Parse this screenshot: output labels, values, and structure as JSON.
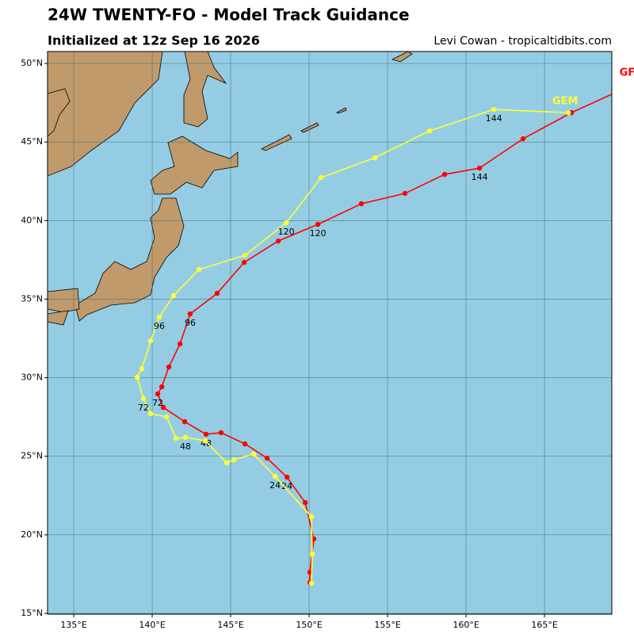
{
  "chart_data": {
    "type": "line",
    "title": "24W TWENTY-FO - Model Track Guidance",
    "subtitle": "Initialized at 12z Sep 16 2026",
    "credit": "Levi Cowan - tropicaltidbits.com",
    "xlim": [
      133.33,
      169.29
    ],
    "ylim": [
      14.95,
      50.76
    ],
    "xticks": [
      {
        "value": 135,
        "label": "135°E"
      },
      {
        "value": 140,
        "label": "140°E"
      },
      {
        "value": 145,
        "label": "145°E"
      },
      {
        "value": 150,
        "label": "150°E"
      },
      {
        "value": 155,
        "label": "155°E"
      },
      {
        "value": 160,
        "label": "160°E"
      },
      {
        "value": 165,
        "label": "165°E"
      }
    ],
    "yticks": [
      {
        "value": 15,
        "label": "15°N"
      },
      {
        "value": 20,
        "label": "20°N"
      },
      {
        "value": 25,
        "label": "25°N"
      },
      {
        "value": 30,
        "label": "30°N"
      },
      {
        "value": 35,
        "label": "35°N"
      },
      {
        "value": 40,
        "label": "40°N"
      },
      {
        "value": 45,
        "label": "45°N"
      },
      {
        "value": 50,
        "label": "50°N"
      }
    ],
    "grid": true,
    "series": [
      {
        "name": "GFS",
        "color": "#ff0000",
        "x": [
          150.05,
          150.05,
          150.3,
          149.75,
          148.59,
          147.32,
          145.91,
          144.39,
          143.43,
          142.07,
          140.71,
          140.35,
          140.61,
          141.06,
          141.77,
          142.42,
          144.14,
          145.86,
          148.03,
          150.56,
          153.33,
          156.11,
          158.64,
          160.86,
          163.64,
          166.72,
          170.71
        ],
        "values": [
          16.97,
          17.62,
          19.74,
          22.06,
          23.67,
          24.88,
          25.79,
          26.5,
          26.4,
          27.2,
          28.11,
          28.97,
          29.42,
          30.68,
          32.15,
          34.06,
          35.37,
          37.34,
          38.7,
          39.76,
          41.07,
          41.73,
          42.94,
          43.34,
          45.21,
          46.87,
          48.69
        ],
        "hour_labels": [
          null,
          null,
          null,
          null,
          "24",
          null,
          null,
          null,
          "48",
          null,
          null,
          "72",
          null,
          null,
          null,
          "96",
          null,
          null,
          null,
          "120",
          null,
          null,
          null,
          "144",
          null,
          null,
          null
        ]
      },
      {
        "name": "GEM",
        "color": "#ffff33",
        "x": [
          150.15,
          150.2,
          150.15,
          147.83,
          146.46,
          145.2,
          144.75,
          143.38,
          142.12,
          141.52,
          140.91,
          139.9,
          139.44,
          139.04,
          139.34,
          139.9,
          140.45,
          141.36,
          142.98,
          145.91,
          148.54,
          150.76,
          154.19,
          157.68,
          161.77,
          166.52
        ],
        "values": [
          16.92,
          18.78,
          21.15,
          23.72,
          25.14,
          24.78,
          24.58,
          25.99,
          26.2,
          26.14,
          27.51,
          27.71,
          28.67,
          30.03,
          30.58,
          32.35,
          33.86,
          35.22,
          36.89,
          37.79,
          39.86,
          42.74,
          44.0,
          45.71,
          47.07,
          46.87
        ],
        "hour_labels": [
          null,
          null,
          null,
          "24",
          null,
          null,
          null,
          null,
          "48",
          null,
          null,
          null,
          "72",
          null,
          null,
          null,
          "96",
          null,
          null,
          null,
          "120",
          null,
          null,
          null,
          "144",
          null
        ]
      }
    ]
  }
}
